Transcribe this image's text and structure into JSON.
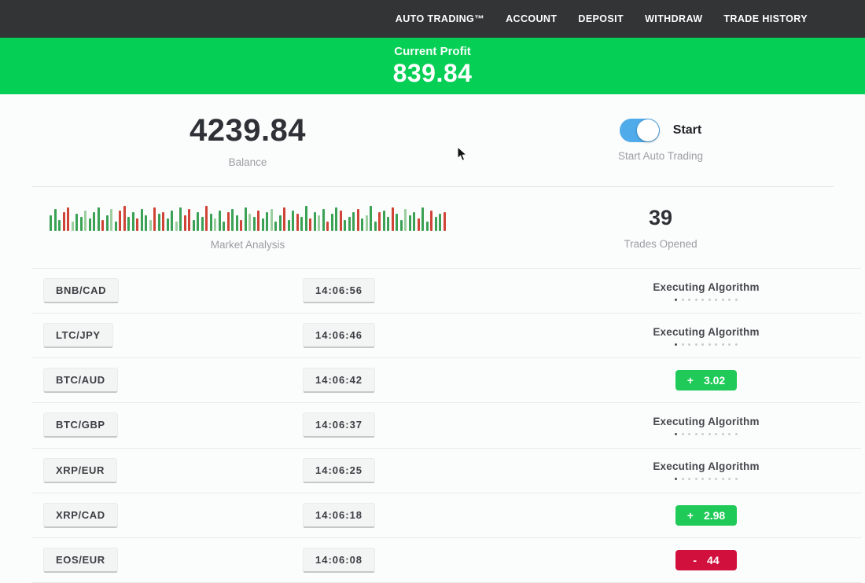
{
  "nav": {
    "items": [
      {
        "label": "AUTO TRADING™"
      },
      {
        "label": "ACCOUNT"
      },
      {
        "label": "DEPOSIT"
      },
      {
        "label": "WITHDRAW"
      },
      {
        "label": "TRADE HISTORY"
      }
    ],
    "bg_color": "#323436"
  },
  "profit_banner": {
    "label": "Current Profit",
    "value": "839.84",
    "bg_color": "#06cf55"
  },
  "stats": {
    "balance": {
      "value": "4239.84",
      "label": "Balance"
    },
    "auto_trading": {
      "toggle_on": true,
      "toggle_color": "#4fabea",
      "toggle_label": "Start",
      "label": "Start Auto Trading"
    },
    "market_analysis": {
      "label": "Market Analysis"
    },
    "trades_opened": {
      "value": "39",
      "label": "Trades Opened"
    }
  },
  "chart_data": {
    "type": "bar",
    "title": "Market Analysis",
    "note": "decorative mini candlestick/volume strip, no axes",
    "palette": {
      "g": "#3aa155",
      "r": "#cf4437",
      "lg": "#9ccf9f",
      "lr": "#dfa09a"
    },
    "bars": [
      [
        20,
        "g"
      ],
      [
        28,
        "g"
      ],
      [
        14,
        "g"
      ],
      [
        24,
        "r"
      ],
      [
        30,
        "r"
      ],
      [
        12,
        "lg"
      ],
      [
        22,
        "g"
      ],
      [
        18,
        "g"
      ],
      [
        26,
        "lg"
      ],
      [
        16,
        "g"
      ],
      [
        24,
        "g"
      ],
      [
        30,
        "g"
      ],
      [
        14,
        "r"
      ],
      [
        20,
        "g"
      ],
      [
        28,
        "lg"
      ],
      [
        12,
        "g"
      ],
      [
        26,
        "r"
      ],
      [
        32,
        "r"
      ],
      [
        18,
        "g"
      ],
      [
        24,
        "g"
      ],
      [
        16,
        "r"
      ],
      [
        28,
        "g"
      ],
      [
        20,
        "g"
      ],
      [
        14,
        "lg"
      ],
      [
        30,
        "r"
      ],
      [
        22,
        "g"
      ],
      [
        24,
        "r"
      ],
      [
        16,
        "g"
      ],
      [
        26,
        "g"
      ],
      [
        12,
        "lg"
      ],
      [
        30,
        "g"
      ],
      [
        20,
        "r"
      ],
      [
        28,
        "r"
      ],
      [
        14,
        "g"
      ],
      [
        24,
        "g"
      ],
      [
        18,
        "g"
      ],
      [
        32,
        "r"
      ],
      [
        22,
        "g"
      ],
      [
        16,
        "lg"
      ],
      [
        26,
        "g"
      ],
      [
        12,
        "g"
      ],
      [
        24,
        "r"
      ],
      [
        28,
        "g"
      ],
      [
        20,
        "g"
      ],
      [
        14,
        "r"
      ],
      [
        30,
        "g"
      ],
      [
        22,
        "lg"
      ],
      [
        18,
        "g"
      ],
      [
        26,
        "r"
      ],
      [
        16,
        "g"
      ],
      [
        24,
        "g"
      ],
      [
        28,
        "lg"
      ],
      [
        12,
        "g"
      ],
      [
        20,
        "g"
      ],
      [
        30,
        "r"
      ],
      [
        14,
        "g"
      ],
      [
        26,
        "g"
      ],
      [
        22,
        "r"
      ],
      [
        18,
        "g"
      ],
      [
        32,
        "g"
      ],
      [
        16,
        "r"
      ],
      [
        24,
        "g"
      ],
      [
        20,
        "lg"
      ],
      [
        28,
        "g"
      ],
      [
        12,
        "r"
      ],
      [
        22,
        "g"
      ],
      [
        30,
        "g"
      ],
      [
        26,
        "r"
      ],
      [
        14,
        "g"
      ],
      [
        18,
        "g"
      ],
      [
        24,
        "g"
      ],
      [
        28,
        "r"
      ],
      [
        16,
        "g"
      ],
      [
        20,
        "lg"
      ],
      [
        32,
        "g"
      ],
      [
        12,
        "g"
      ],
      [
        24,
        "r"
      ],
      [
        26,
        "g"
      ],
      [
        18,
        "g"
      ],
      [
        30,
        "r"
      ],
      [
        22,
        "g"
      ],
      [
        14,
        "g"
      ],
      [
        28,
        "lg"
      ],
      [
        20,
        "g"
      ],
      [
        24,
        "g"
      ],
      [
        16,
        "r"
      ],
      [
        30,
        "g"
      ],
      [
        12,
        "g"
      ],
      [
        26,
        "r"
      ],
      [
        18,
        "g"
      ],
      [
        22,
        "g"
      ],
      [
        24,
        "r"
      ]
    ]
  },
  "trades": {
    "executing_label": "Executing Algorithm",
    "progress_dots": 10,
    "profit_color": "#1fca58",
    "loss_color": "#d2103d",
    "rows": [
      {
        "pair": "BNB/CAD",
        "time": "14:06:56",
        "status": "executing"
      },
      {
        "pair": "LTC/JPY",
        "time": "14:06:46",
        "status": "executing"
      },
      {
        "pair": "BTC/AUD",
        "time": "14:06:42",
        "status": "profit",
        "sign": "+",
        "value": "3.02"
      },
      {
        "pair": "BTC/GBP",
        "time": "14:06:37",
        "status": "executing"
      },
      {
        "pair": "XRP/EUR",
        "time": "14:06:25",
        "status": "executing"
      },
      {
        "pair": "XRP/CAD",
        "time": "14:06:18",
        "status": "profit",
        "sign": "+",
        "value": "2.98"
      },
      {
        "pair": "EOS/EUR",
        "time": "14:06:08",
        "status": "loss",
        "sign": "-",
        "value": "44"
      }
    ]
  }
}
